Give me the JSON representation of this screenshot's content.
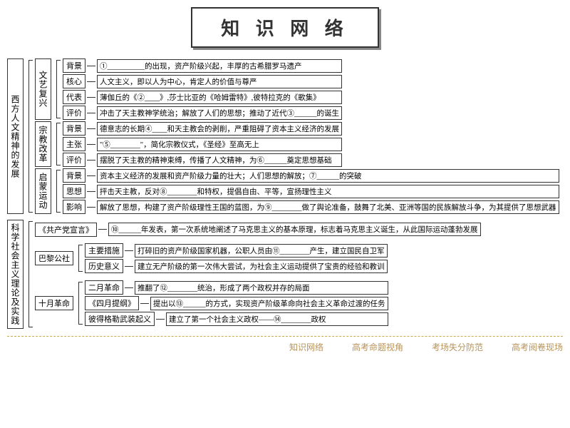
{
  "title": "知 识 网 络",
  "section1": {
    "root": "西方人文精神的发展",
    "branches": [
      {
        "name": "文艺复兴",
        "items": [
          {
            "label": "背景",
            "text": "①__________的出现，资产阶级兴起，丰厚的古希腊罗马遗产"
          },
          {
            "label": "核心",
            "text": "人文主义，即以人为中心，肯定人的价值与尊严"
          },
          {
            "label": "代表",
            "text": "薄伽丘的《②____》,莎士比亚的《哈姆雷特》,彼特拉克的《歌集》"
          },
          {
            "label": "评价",
            "text": "冲击了天主教神学统治；解放了人们的思想；推动了近代③______的诞生"
          }
        ]
      },
      {
        "name": "宗教改革",
        "items": [
          {
            "label": "背景",
            "text": "德意志的长期④____和天主教会的剥削，严重阻碍了资本主义经济的发展"
          },
          {
            "label": "主张",
            "text": "\"⑤________\"，简化宗教仪式，《圣经》至高无上"
          },
          {
            "label": "评价",
            "text": "摆脱了天主教的精神束缚，传播了人文精神，为⑥______奠定思想基础"
          }
        ]
      },
      {
        "name": "启蒙运动",
        "items": [
          {
            "label": "背景",
            "text": "资本主义经济的发展和资产阶级力量的壮大；人们思想的解放；⑦______的突破"
          },
          {
            "label": "思想",
            "text": "抨击天主教，反对⑧________和特权，提倡自由、平等，宣扬理性主义"
          },
          {
            "label": "影响",
            "text": "解放了思想，构建了资产阶级理性王国的蓝图，为⑨________做了舆论准备，鼓舞了北美、亚洲等国的民族解放斗争，为其提供了思想武器"
          }
        ]
      }
    ]
  },
  "section2": {
    "root": "科学社会主义理论及实践",
    "branches": [
      {
        "label": "《共产党宣言》",
        "text": "⑩______年发表，第一次系统地阐述了马克思主义的基本原理，标志着马克思主义诞生，从此国际运动蓬勃发展"
      },
      {
        "name": "巴黎公社",
        "items": [
          {
            "label": "主要措施",
            "text": "打碎旧的资产阶级国家机器，公职人员由⑪________产生，建立国民自卫军"
          },
          {
            "label": "历史意义",
            "text": "建立无产阶级的第一次伟大尝试，为社会主义运动提供了宝贵的经验和教训"
          }
        ]
      },
      {
        "name": "十月革命",
        "items": [
          {
            "label": "二月革命",
            "text": "推翻了⑫________统治，形成了两个政权并存的局面"
          },
          {
            "label": "《四月提纲》",
            "text": "提出以⑬______的方式，实现资产阶级革命向社会主义革命过渡的任务"
          },
          {
            "label": "彼得格勒武装起义",
            "text": "建立了第一个社会主义政权——⑭________政权"
          }
        ]
      }
    ]
  },
  "footer": [
    "知识网络",
    "高考命题视角",
    "考场失分防范",
    "高考阅卷现场"
  ]
}
